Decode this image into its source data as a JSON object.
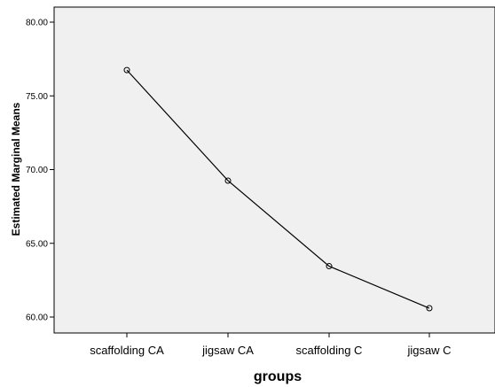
{
  "chart_data": {
    "type": "line",
    "title": "",
    "xlabel": "groups",
    "ylabel": "Estimated Marginal Means",
    "categories": [
      "scaffolding CA",
      "jigsaw CA",
      "scaffolding C",
      "jigsaw C"
    ],
    "series": [
      {
        "values": [
          76.75,
          69.25,
          63.45,
          60.6
        ]
      }
    ],
    "ylim": [
      59.0,
      80.0
    ],
    "yticks": [
      "60.00",
      "65.00",
      "70.00",
      "75.00",
      "80.00"
    ],
    "grid": false,
    "legend": "none",
    "colors": {
      "plot_background": "#f0f0f0",
      "line": "#000000",
      "axis": "#000000"
    }
  }
}
